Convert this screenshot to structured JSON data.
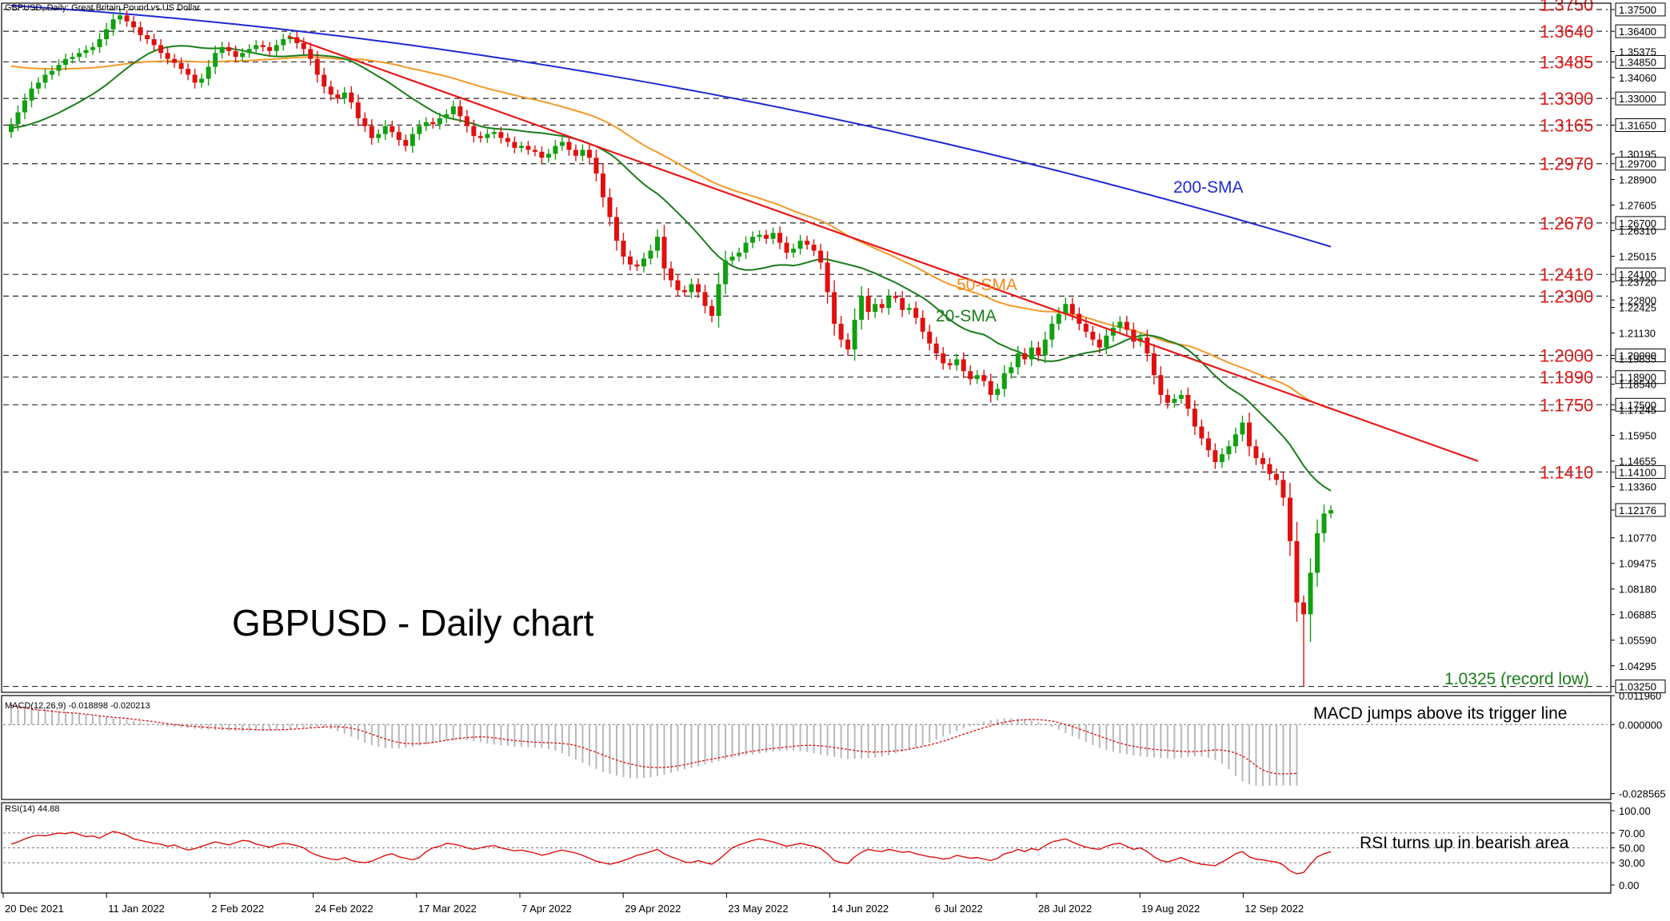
{
  "chart_data": {
    "type": "candlestick",
    "symbol_label": "GBPUSD, Daily:  Great Britain Pound vs US Dollar",
    "annotation_title": "GBPUSD - Daily chart",
    "x_tick_labels": [
      "20 Dec 2021",
      "11 Jan 2022",
      "2 Feb 2022",
      "24 Feb 2022",
      "17 Mar 2022",
      "7 Apr 2022",
      "29 Apr 2022",
      "23 May 2022",
      "14 Jun 2022",
      "6 Jul 2022",
      "28 Jul 2022",
      "19 Aug 2022",
      "12 Sep 2022"
    ],
    "y_range": [
      1.0295,
      1.3782
    ],
    "y_tick_labels": [
      "1.37500",
      "1.36400",
      "1.35375",
      "1.34850",
      "1.34060",
      "1.33000",
      "1.31650",
      "1.30195",
      "1.29700",
      "1.28900",
      "1.27605",
      "1.26700",
      "1.26310",
      "1.25015",
      "1.24100",
      "1.23720",
      "1.22800",
      "1.22425",
      "1.21130",
      "1.20000",
      "1.19835",
      "1.18900",
      "1.18540",
      "1.17500",
      "1.17245",
      "1.15950",
      "1.14655",
      "1.14100",
      "1.13360",
      "1.12176",
      "1.10770",
      "1.09475",
      "1.08180",
      "1.06885",
      "1.05590",
      "1.04295",
      "1.03250"
    ],
    "highlighted_levels": [
      1.375,
      1.364,
      1.3485,
      1.33,
      1.3165,
      1.297,
      1.267,
      1.241,
      1.23,
      1.2,
      1.189,
      1.175,
      1.141,
      1.0325,
      1.12176
    ],
    "level_labels": [
      {
        "price": 1.3775,
        "text": "1.3750"
      },
      {
        "price": 1.364,
        "text": "1.3640"
      },
      {
        "price": 1.3485,
        "text": "1.3485"
      },
      {
        "price": 1.33,
        "text": "1.3300"
      },
      {
        "price": 1.3165,
        "text": "1.3165"
      },
      {
        "price": 1.297,
        "text": "1.2970"
      },
      {
        "price": 1.267,
        "text": "1.2670"
      },
      {
        "price": 1.241,
        "text": "1.2410"
      },
      {
        "price": 1.23,
        "text": "1.2300"
      },
      {
        "price": 1.2,
        "text": "1.2000"
      },
      {
        "price": 1.189,
        "text": "1.1890"
      },
      {
        "price": 1.175,
        "text": "1.1750"
      },
      {
        "price": 1.141,
        "text": "1.1410"
      }
    ],
    "record_low_label": "1.0325 (record low)",
    "sma_labels": {
      "sma200": "200-SMA",
      "sma50": "50-SMA",
      "sma20": "20-SMA"
    },
    "trendline": {
      "start_bar": 0.5,
      "start_price": 1.3615,
      "end_bar": 1.5,
      "end_price": 1.1465
    },
    "series_closes": [
      1.317,
      1.323,
      1.329,
      1.335,
      1.338,
      1.342,
      1.344,
      1.347,
      1.35,
      1.351,
      1.353,
      1.3545,
      1.356,
      1.36,
      1.365,
      1.37,
      1.372,
      1.369,
      1.366,
      1.362,
      1.36,
      1.357,
      1.353,
      1.35,
      1.348,
      1.345,
      1.342,
      1.338,
      1.34,
      1.346,
      1.353,
      1.356,
      1.354,
      1.351,
      1.353,
      1.355,
      1.357,
      1.356,
      1.354,
      1.357,
      1.36,
      1.361,
      1.358,
      1.355,
      1.35,
      1.342,
      1.336,
      1.332,
      1.33,
      1.333,
      1.328,
      1.32,
      1.316,
      1.31,
      1.312,
      1.316,
      1.313,
      1.309,
      1.306,
      1.312,
      1.316,
      1.318,
      1.317,
      1.32,
      1.322,
      1.326,
      1.321,
      1.316,
      1.311,
      1.31,
      1.312,
      1.313,
      1.31,
      1.308,
      1.305,
      1.306,
      1.304,
      1.303,
      1.3,
      1.302,
      1.306,
      1.308,
      1.304,
      1.301,
      1.304,
      1.3,
      1.292,
      1.28,
      1.27,
      1.258,
      1.25,
      1.246,
      1.245,
      1.249,
      1.253,
      1.26,
      1.244,
      1.238,
      1.233,
      1.232,
      1.236,
      1.232,
      1.225,
      1.22,
      1.236,
      1.248,
      1.25,
      1.252,
      1.257,
      1.26,
      1.261,
      1.259,
      1.262,
      1.257,
      1.252,
      1.254,
      1.258,
      1.256,
      1.253,
      1.247,
      1.232,
      1.216,
      1.208,
      1.203,
      1.218,
      1.23,
      1.222,
      1.226,
      1.224,
      1.23,
      1.229,
      1.223,
      1.224,
      1.219,
      1.212,
      1.206,
      1.201,
      1.196,
      1.195,
      1.198,
      1.192,
      1.188,
      1.19,
      1.187,
      1.18,
      1.183,
      1.191,
      1.194,
      1.201,
      1.198,
      1.204,
      1.2,
      1.208,
      1.216,
      1.221,
      1.226,
      1.221,
      1.216,
      1.212,
      1.208,
      1.204,
      1.21,
      1.214,
      1.217,
      1.213,
      1.207,
      1.209,
      1.201,
      1.19,
      1.18,
      1.176,
      1.178,
      1.18,
      1.173,
      1.164,
      1.158,
      1.152,
      1.146,
      1.15,
      1.154,
      1.16,
      1.166,
      1.154,
      1.148,
      1.145,
      1.14,
      1.137,
      1.128,
      1.106,
      1.075,
      1.069,
      1.09,
      1.11,
      1.12,
      1.1217
    ],
    "indicators": {
      "macd": {
        "label": "MACD(12,26,9) -0.018898 -0.020213",
        "range": [
          -0.031,
          0.012
        ],
        "tick_labels": [
          "0.011960",
          "0.000000",
          "-0.028565"
        ],
        "signal_shape": [
          0.008,
          0.0075,
          0.007,
          0.0065,
          0.006,
          0.0058,
          0.0055,
          0.0052,
          0.005,
          0.0048,
          0.0046,
          0.0043,
          0.004,
          0.0036,
          0.0033,
          0.003,
          0.0028,
          0.0025,
          0.0022,
          0.0018,
          0.0015,
          0.0012,
          0.0008,
          0.0004,
          0.0,
          -0.0003,
          -0.0006,
          -0.0008,
          -0.001,
          -0.0012,
          -0.0014,
          -0.0016,
          -0.0017,
          -0.0018,
          -0.0019,
          -0.002,
          -0.0021,
          -0.0022,
          -0.0022,
          -0.0022,
          -0.0021,
          -0.002,
          -0.0018,
          -0.0016,
          -0.0014,
          -0.0012,
          -0.001,
          -0.0009,
          -0.0009,
          -0.0011,
          -0.0015,
          -0.0022,
          -0.003,
          -0.004,
          -0.005,
          -0.006,
          -0.0068,
          -0.0074,
          -0.0078,
          -0.0079,
          -0.0079,
          -0.0077,
          -0.0074,
          -0.007,
          -0.0065,
          -0.006,
          -0.0057,
          -0.0054,
          -0.0052,
          -0.0051,
          -0.0052,
          -0.0055,
          -0.0059,
          -0.0063,
          -0.0066,
          -0.0069,
          -0.0071,
          -0.0073,
          -0.0074,
          -0.0075,
          -0.0076,
          -0.0078,
          -0.0081,
          -0.0087,
          -0.0095,
          -0.0105,
          -0.0115,
          -0.0126,
          -0.0137,
          -0.0147,
          -0.0156,
          -0.0163,
          -0.0169,
          -0.0174,
          -0.0177,
          -0.0178,
          -0.0177,
          -0.0175,
          -0.0171,
          -0.0166,
          -0.016,
          -0.0154,
          -0.0148,
          -0.0143,
          -0.0138,
          -0.0132,
          -0.0127,
          -0.0121,
          -0.0115,
          -0.011,
          -0.0106,
          -0.0102,
          -0.0099,
          -0.0096,
          -0.0093,
          -0.009,
          -0.0087,
          -0.0086,
          -0.0086,
          -0.0088,
          -0.0091,
          -0.0095,
          -0.0099,
          -0.0103,
          -0.0107,
          -0.0111,
          -0.0113,
          -0.0114,
          -0.0113,
          -0.0111,
          -0.0109,
          -0.0106,
          -0.0102,
          -0.0096,
          -0.009,
          -0.0084,
          -0.0077,
          -0.0069,
          -0.006,
          -0.005,
          -0.004,
          -0.0031,
          -0.0022,
          -0.0013,
          -0.0005,
          0.0003,
          0.001,
          0.0015,
          0.0018,
          0.002,
          0.0021,
          0.002,
          0.0018,
          0.0014,
          0.0008,
          0.0,
          -0.0008,
          -0.0018,
          -0.0028,
          -0.0038,
          -0.0048,
          -0.0058,
          -0.0068,
          -0.0077,
          -0.0084,
          -0.009,
          -0.0095,
          -0.0099,
          -0.0102,
          -0.0105,
          -0.0107,
          -0.0109,
          -0.0111,
          -0.0112,
          -0.0112,
          -0.011,
          -0.0107,
          -0.0105,
          -0.0106,
          -0.011,
          -0.0118,
          -0.013,
          -0.0148,
          -0.017,
          -0.0188,
          -0.0198,
          -0.0203,
          -0.0204,
          -0.0203,
          -0.0202
        ],
        "hist_scale": 1.25,
        "annotation": "MACD jumps above its trigger line"
      },
      "rsi": {
        "label": "RSI(14) 44.88",
        "range": [
          0,
          100
        ],
        "tick_labels": [
          "100.00",
          "70.00",
          "50.00",
          "30.00",
          "0.00"
        ],
        "tick_values": [
          100,
          70,
          50,
          30,
          0
        ],
        "values": [
          55,
          58,
          62,
          65,
          67,
          66,
          68,
          70,
          69,
          71,
          68,
          65,
          66,
          63,
          68,
          72,
          70,
          67,
          62,
          60,
          58,
          56,
          55,
          52,
          54,
          50,
          47,
          49,
          52,
          55,
          58,
          56,
          54,
          57,
          60,
          59,
          55,
          53,
          51,
          54,
          56,
          55,
          53,
          50,
          44,
          40,
          37,
          35,
          34,
          37,
          33,
          31,
          30,
          32,
          36,
          40,
          42,
          38,
          36,
          34,
          37,
          45,
          50,
          52,
          56,
          55,
          53,
          50,
          48,
          50,
          52,
          53,
          50,
          48,
          46,
          47,
          45,
          43,
          40,
          42,
          45,
          47,
          45,
          43,
          40,
          36,
          32,
          30,
          28,
          30,
          33,
          36,
          40,
          42,
          45,
          48,
          42,
          38,
          35,
          31,
          30,
          33,
          30,
          28,
          34,
          42,
          50,
          54,
          57,
          60,
          62,
          60,
          58,
          55,
          52,
          54,
          56,
          54,
          52,
          49,
          42,
          33,
          30,
          29,
          38,
          44,
          48,
          46,
          45,
          48,
          46,
          44,
          45,
          42,
          40,
          38,
          37,
          35,
          36,
          40,
          38,
          36,
          37,
          35,
          33,
          36,
          42,
          44,
          48,
          45,
          49,
          47,
          53,
          58,
          60,
          62,
          58,
          54,
          51,
          49,
          48,
          52,
          55,
          56,
          52,
          48,
          50,
          45,
          38,
          33,
          31,
          34,
          37,
          33,
          30,
          28,
          27,
          26,
          31,
          36,
          42,
          45,
          38,
          35,
          34,
          32,
          31,
          27,
          19,
          15,
          17,
          28,
          38,
          42,
          44.88
        ],
        "annotation": "RSI turns up in bearish area"
      }
    }
  }
}
